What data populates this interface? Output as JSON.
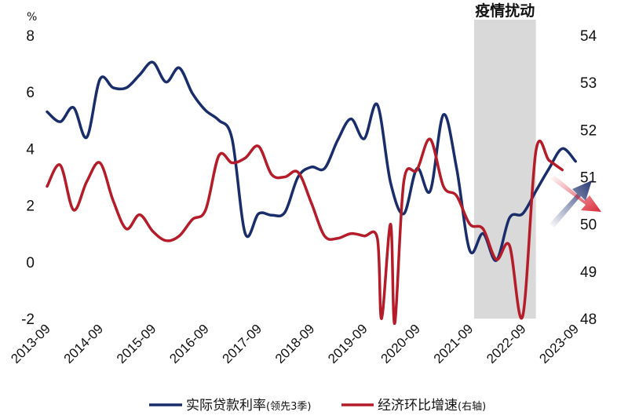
{
  "chart_data": {
    "type": "line",
    "left_axis_unit": "%",
    "left_axis": {
      "min": -2,
      "max": 8,
      "ticks": [
        8,
        6,
        4,
        2,
        0,
        -2
      ]
    },
    "right_axis": {
      "min": 48,
      "max": 54,
      "ticks": [
        54,
        53,
        52,
        51,
        50,
        49,
        48
      ]
    },
    "x_range": [
      2013.67,
      2023.95
    ],
    "x_tick_labels": [
      "2013-09",
      "2014-09",
      "2015-09",
      "2016-09",
      "2017-09",
      "2018-09",
      "2019-09",
      "2020-09",
      "2021-09",
      "2022-09",
      "2023-09"
    ],
    "x_tick_positions": [
      2013.67,
      2014.67,
      2015.67,
      2016.67,
      2017.67,
      2018.67,
      2019.67,
      2020.67,
      2021.67,
      2022.67,
      2023.67
    ],
    "shaded_region": {
      "label": "疫情扰动",
      "x_start": 2021.75,
      "x_end": 2022.92
    },
    "series": [
      {
        "name": "实际贷款利率",
        "name_note": "(领先3季)",
        "axis": "left",
        "color": "#1a2d6b",
        "x": [
          2013.67,
          2013.92,
          2014.17,
          2014.42,
          2014.67,
          2014.92,
          2015.17,
          2015.42,
          2015.67,
          2015.92,
          2016.17,
          2016.42,
          2016.67,
          2016.92,
          2017.17,
          2017.42,
          2017.67,
          2017.92,
          2018.17,
          2018.42,
          2018.67,
          2018.92,
          2019.17,
          2019.42,
          2019.67,
          2019.92,
          2020.17,
          2020.42,
          2020.67,
          2020.92,
          2021.17,
          2021.42,
          2021.67,
          2021.92,
          2022.17,
          2022.42,
          2022.67,
          2022.92,
          2023.17,
          2023.42,
          2023.67
        ],
        "values": [
          5.3,
          4.95,
          5.45,
          4.4,
          6.45,
          6.15,
          6.15,
          6.6,
          7.05,
          6.35,
          6.85,
          5.95,
          5.35,
          5.0,
          4.35,
          1.0,
          1.7,
          1.65,
          1.75,
          3.0,
          3.35,
          3.3,
          4.3,
          5.05,
          4.35,
          5.55,
          2.8,
          1.7,
          3.3,
          2.5,
          5.2,
          3.3,
          0.4,
          1.0,
          0.05,
          1.55,
          1.7,
          2.5,
          3.3,
          4.0,
          3.55
        ]
      },
      {
        "name": "经济环比增速",
        "name_note": "(右轴)",
        "axis": "right",
        "color": "#b51c2a",
        "x": [
          2013.67,
          2013.92,
          2014.17,
          2014.42,
          2014.67,
          2014.92,
          2015.17,
          2015.42,
          2015.67,
          2015.92,
          2016.17,
          2016.42,
          2016.67,
          2016.92,
          2017.17,
          2017.42,
          2017.67,
          2017.92,
          2018.17,
          2018.42,
          2018.67,
          2018.92,
          2019.17,
          2019.42,
          2019.67,
          2019.92,
          2020.0,
          2020.17,
          2020.25,
          2020.42,
          2020.67,
          2020.92,
          2021.17,
          2021.42,
          2021.67,
          2021.92,
          2022.17,
          2022.42,
          2022.67,
          2022.92,
          2023.17,
          2023.42
        ],
        "values": [
          50.8,
          51.25,
          50.3,
          50.9,
          51.3,
          50.5,
          49.9,
          50.2,
          49.85,
          49.65,
          49.75,
          50.1,
          50.3,
          51.45,
          51.3,
          51.4,
          51.65,
          51.05,
          51.0,
          51.1,
          50.45,
          49.75,
          49.7,
          49.8,
          49.75,
          49.7,
          48.0,
          50.0,
          47.9,
          50.9,
          51.15,
          51.8,
          50.8,
          50.6,
          50.0,
          49.9,
          49.25,
          49.55,
          48.05,
          51.55,
          51.35,
          51.15
        ]
      }
    ]
  },
  "legend": {
    "items": [
      {
        "label": "实际贷款利率",
        "note": "(领先3季)",
        "color": "#1a2d6b"
      },
      {
        "label": "经济环比增速",
        "note": "(右轴)",
        "color": "#b51c2a"
      }
    ]
  }
}
